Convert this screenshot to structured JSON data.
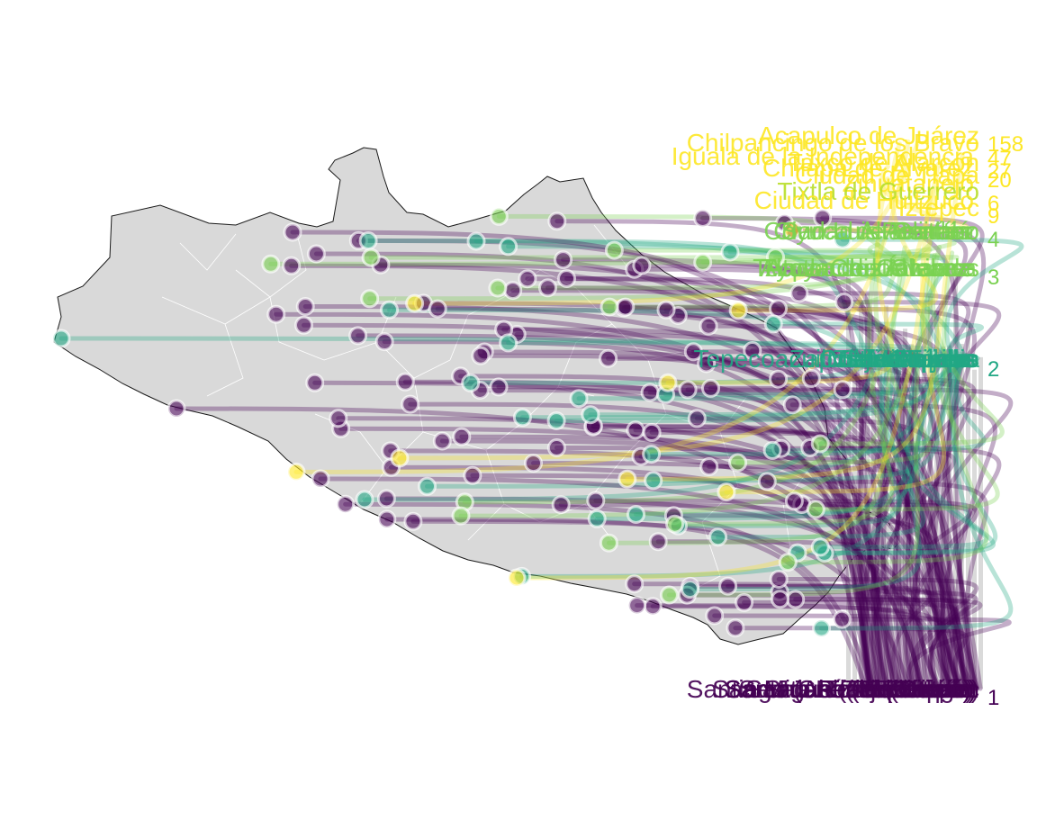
{
  "colors": {
    "land": "#d9d9d9",
    "border": "#1a1a1a",
    "muni_border": "#ffffff",
    "bar": "#d3d3d3",
    "level_1": "#440154",
    "level_2": "#21a784",
    "level_3": "#7ad151",
    "level_4": "#86d549",
    "level_high": "#fde725",
    "level_mid": "#b8de29",
    "halo": "#ffffff"
  },
  "legend_counts": [
    "158",
    "47",
    "27",
    "20",
    "9",
    "6",
    "4",
    "3",
    "2",
    "1"
  ],
  "labels": {
    "top": [
      "Acapulco de Juárez",
      "Chilpancingo de los Bravo",
      "Iguala de la Independencia",
      "Taxco de Alarcón",
      "Chilapa de Álvarez",
      "Ciudad de Tlapa",
      "Zihuatanejo",
      "Tixtla de Guerrero",
      "Ciudad de Huitzuco",
      "Iztepec"
    ],
    "upper_mid": [
      "Ciudad Altamirano",
      "Coyuca de Benítez",
      "Petatlán",
      "Olinalá",
      "San Luis Acatlán",
      "Ayutla de los Libres",
      "Tlacoachistlahuaca",
      "Cruz Grande",
      "Tecpan de Galeana",
      "Atoyac de Álvarez"
    ],
    "mid": [
      "Tepecoacuilco de Trujano",
      "San Marcos",
      "Arcelia",
      "Copala",
      "Marquelia",
      "Cuajinicuilapa",
      "Tlalixtaquilla",
      "Malinaltepec",
      "Zapotitlán Tablas",
      "Metlatónoc"
    ],
    "bottom": [
      "Tlaquiltepec",
      "Santa Cruz del Rincón",
      "El Cerrito",
      "San Miguel (Ajuchitlán)",
      "Santa Rosa (Cocula)",
      "San Juan (Teloloapan)",
      "El Pericón",
      "San José (Tlacoapa)",
      "El Limón",
      "Santiago (Ahuacuotzingo)",
      "San Pedro (Zitlala)",
      "Tlalcozotitlán"
    ]
  }
}
